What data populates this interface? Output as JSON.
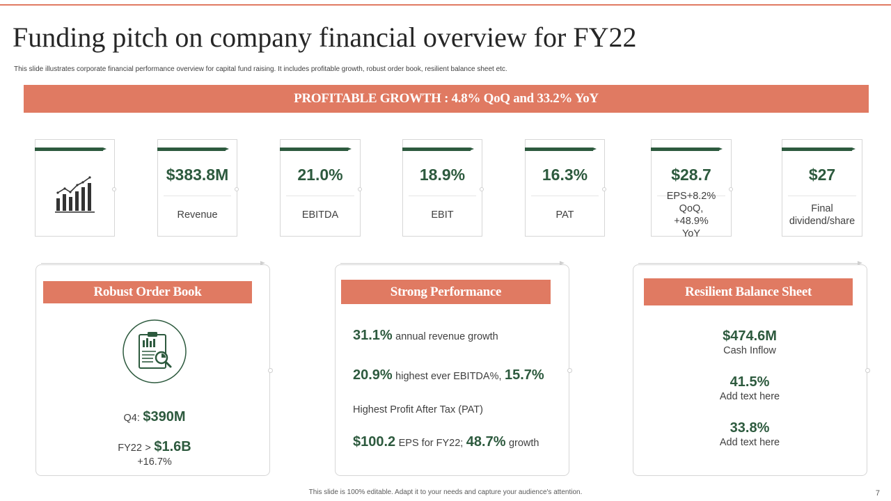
{
  "title": "Funding pitch on company financial overview for FY22",
  "subtitle": "This slide illustrates corporate financial performance overview for capital fund raising. It includes profitable growth, robust order book, resilient balance sheet etc.",
  "banner": "PROFITABLE GROWTH : 4.8% QoQ and 33.2% YoY",
  "kpis": [
    {
      "value": "$383.8M",
      "label": "Revenue"
    },
    {
      "value": "21.0%",
      "label": "EBITDA"
    },
    {
      "value": "18.9%",
      "label": "EBIT"
    },
    {
      "value": "16.3%",
      "label": "PAT"
    },
    {
      "value": "$28.7",
      "label": "EPS+8.2% QoQ, +48.9% YoY"
    },
    {
      "value": "$27",
      "label": "Final dividend/share"
    }
  ],
  "order_book": {
    "header": "Robust Order Book",
    "q4_label": "Q4:",
    "q4_value": "$390M",
    "fy_label": "FY22",
    "fy_sep": ">",
    "fy_value": "$1.6B",
    "fy_growth": "+16.7%"
  },
  "performance": {
    "header": "Strong Performance",
    "l1_value": "31.1%",
    "l1_text": "annual revenue growth",
    "l2_value": "20.9%",
    "l2_text": "highest ever EBITDA%,",
    "l2_value2": "15.7%",
    "l3_text": "Highest Profit After Tax (PAT)",
    "l4_value": "$100.2",
    "l4_text": "EPS for FY22;",
    "l4_value2": "48.7%",
    "l4_text2": "growth"
  },
  "balance": {
    "header": "Resilient Balance Sheet",
    "items": [
      {
        "value": "$474.6M",
        "label": "Cash Inflow"
      },
      {
        "value": "41.5%",
        "label": "Add text here"
      },
      {
        "value": "33.8%",
        "label": "Add text here"
      }
    ]
  },
  "footer": "This slide is 100% editable.  Adapt it to your needs and capture your audience's attention.",
  "page_number": "7",
  "colors": {
    "accent": "#e07a62",
    "green": "#2d5a3e"
  },
  "icons": [
    "bar-chart-growth-icon",
    "clipboard-report-icon"
  ]
}
